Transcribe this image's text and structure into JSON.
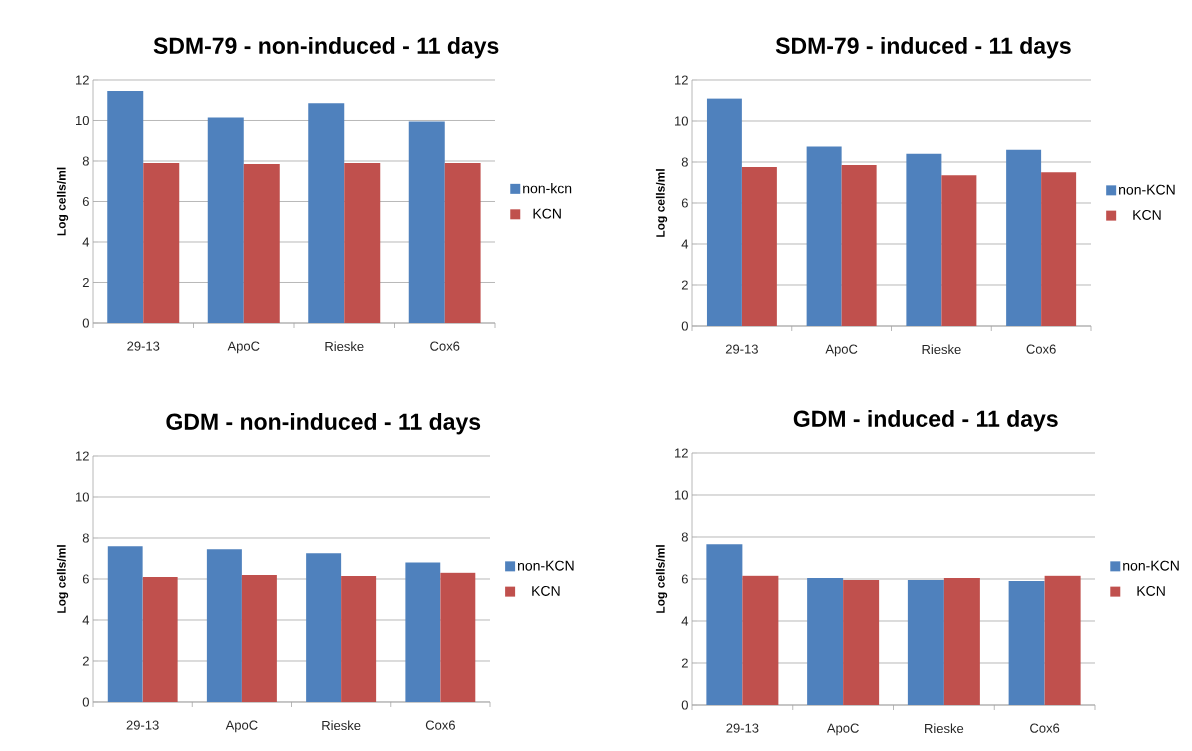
{
  "chart_data": [
    {
      "type": "bar",
      "title": "SDM-79 - non-induced - 11 days",
      "ylabel": "Log cells/ml",
      "categories": [
        "29-13",
        "ApoC",
        "Rieske",
        "Cox6"
      ],
      "series": [
        {
          "name": "non-kcn",
          "color": "#4f81bd",
          "values": [
            11.45,
            10.15,
            10.85,
            9.95
          ]
        },
        {
          "name": "KCN",
          "color": "#c0504d",
          "values": [
            7.9,
            7.85,
            7.9,
            7.9
          ]
        }
      ],
      "ylim": [
        0,
        12
      ],
      "yticks": [
        0,
        2,
        4,
        6,
        8,
        10,
        12
      ],
      "grid": "y",
      "legend": "right"
    },
    {
      "type": "bar",
      "title": "SDM-79 - induced - 11 days",
      "ylabel": "Log cells/ml",
      "categories": [
        "29-13",
        "ApoC",
        "Rieske",
        "Cox6"
      ],
      "series": [
        {
          "name": "non-KCN",
          "color": "#4f81bd",
          "values": [
            11.1,
            8.75,
            8.4,
            8.6
          ]
        },
        {
          "name": "KCN",
          "color": "#c0504d",
          "values": [
            7.75,
            7.85,
            7.35,
            7.5
          ]
        }
      ],
      "ylim": [
        0,
        12
      ],
      "yticks": [
        0,
        2,
        4,
        6,
        8,
        10,
        12
      ],
      "grid": "y",
      "legend": "right"
    },
    {
      "type": "bar",
      "title": "GDM - non-induced - 11 days",
      "ylabel": "Log cells/ml",
      "categories": [
        "29-13",
        "ApoC",
        "Rieske",
        "Cox6"
      ],
      "series": [
        {
          "name": "non-KCN",
          "color": "#4f81bd",
          "values": [
            7.6,
            7.45,
            7.25,
            6.8
          ]
        },
        {
          "name": "KCN",
          "color": "#c0504d",
          "values": [
            6.1,
            6.2,
            6.15,
            6.3
          ]
        }
      ],
      "ylim": [
        0,
        12
      ],
      "yticks": [
        0,
        2,
        4,
        6,
        8,
        10,
        12
      ],
      "grid": "y",
      "legend": "right"
    },
    {
      "type": "bar",
      "title": "GDM - induced - 11 days",
      "ylabel": "Log cells/ml",
      "categories": [
        "29-13",
        "ApoC",
        "Rieske",
        "Cox6"
      ],
      "series": [
        {
          "name": "non-KCN",
          "color": "#4f81bd",
          "values": [
            7.65,
            6.05,
            5.95,
            5.9
          ]
        },
        {
          "name": "KCN",
          "color": "#c0504d",
          "values": [
            6.15,
            5.95,
            6.05,
            6.15
          ]
        }
      ],
      "ylim": [
        0,
        12
      ],
      "yticks": [
        0,
        2,
        4,
        6,
        8,
        10,
        12
      ],
      "grid": "y",
      "legend": "right"
    }
  ]
}
